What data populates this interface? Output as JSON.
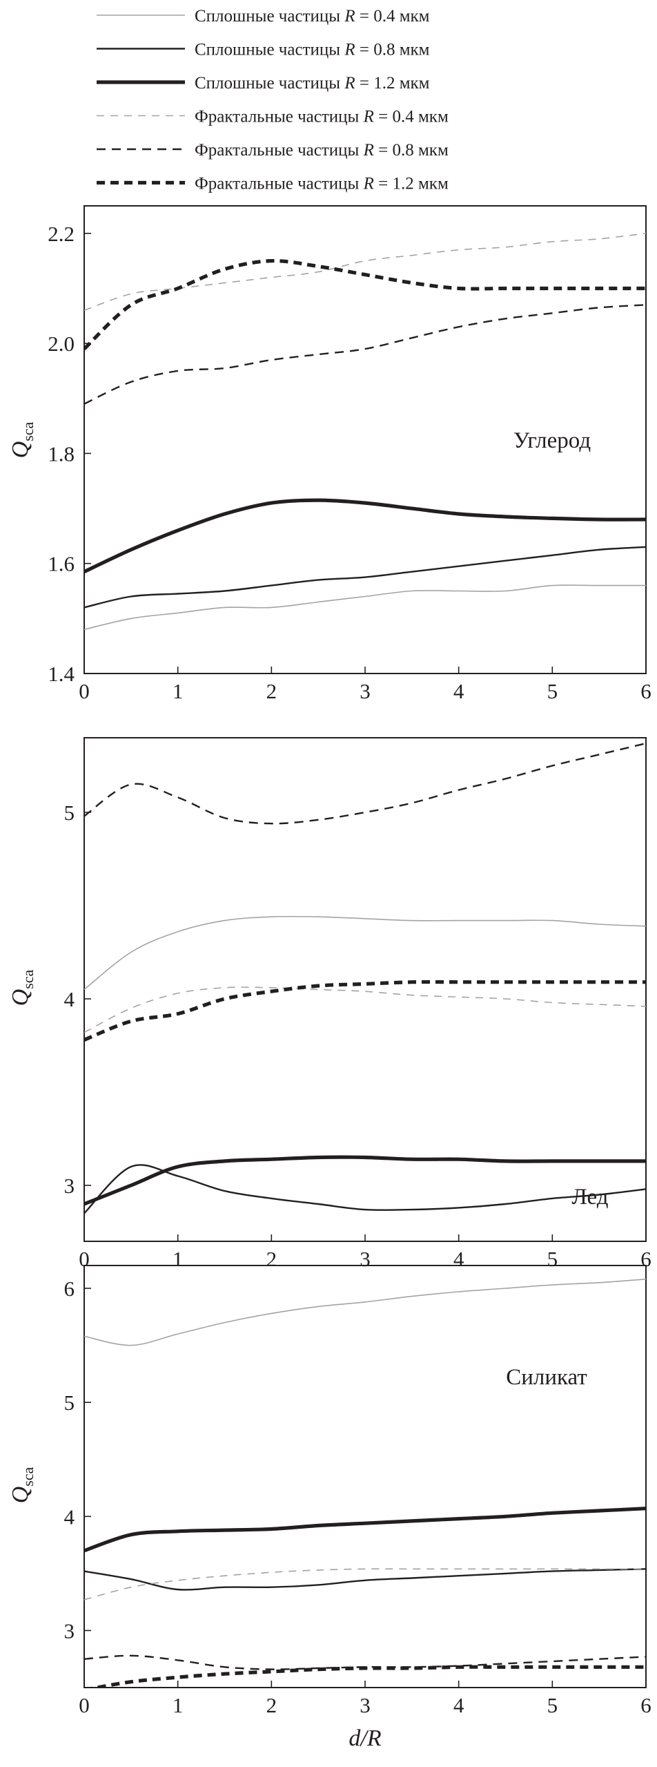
{
  "legend": [
    {
      "prefix": "Сплошные частицы",
      "var": "R",
      "eq": "= 0.4 мкм",
      "color": "#a3a3a3",
      "dash": "solid",
      "weight": "thin"
    },
    {
      "prefix": "Сплошные частицы",
      "var": "R",
      "eq": "= 0.8 мкм",
      "color": "#231f20",
      "dash": "solid",
      "weight": "medium"
    },
    {
      "prefix": "Сплошные частицы",
      "var": "R",
      "eq": "= 1.2 мкм",
      "color": "#231f20",
      "dash": "solid",
      "weight": "thick"
    },
    {
      "prefix": "Фрактальные частицы",
      "var": "R",
      "eq": "= 0.4 мкм",
      "color": "#a3a3a3",
      "dash": "dashed",
      "weight": "thin"
    },
    {
      "prefix": "Фрактальные частицы",
      "var": "R",
      "eq": "= 0.8 мкм",
      "color": "#231f20",
      "dash": "dashed",
      "weight": "medium"
    },
    {
      "prefix": "Фрактальные частицы",
      "var": "R",
      "eq": "= 1.2 мкм",
      "color": "#231f20",
      "dash": "dashed",
      "weight": "thick"
    }
  ],
  "x_label": {
    "main": "d/R"
  },
  "y_label": {
    "main": "Q",
    "sub": "sca"
  },
  "chart_data": [
    {
      "type": "line",
      "panel_label": "Углерод",
      "xlim": [
        0,
        6
      ],
      "ylim": [
        1.4,
        2.25
      ],
      "x_ticks": [
        0,
        1,
        2,
        3,
        4,
        5,
        6
      ],
      "y_ticks": [
        1.4,
        1.6,
        1.8,
        2.0,
        2.2
      ],
      "y_tick_labels": [
        "1.4",
        "1.6",
        "1.8",
        "2.0",
        "2.2"
      ],
      "x": [
        0,
        0.5,
        1,
        1.5,
        2,
        2.5,
        3,
        3.5,
        4,
        4.5,
        5,
        5.5,
        6
      ],
      "series": [
        {
          "values": [
            1.48,
            1.5,
            1.51,
            1.52,
            1.52,
            1.53,
            1.54,
            1.55,
            1.55,
            1.55,
            1.56,
            1.56,
            1.56
          ]
        },
        {
          "values": [
            1.52,
            1.54,
            1.545,
            1.55,
            1.56,
            1.57,
            1.575,
            1.585,
            1.595,
            1.605,
            1.615,
            1.625,
            1.63
          ]
        },
        {
          "values": [
            1.585,
            1.625,
            1.66,
            1.69,
            1.71,
            1.715,
            1.71,
            1.7,
            1.69,
            1.685,
            1.682,
            1.68,
            1.68
          ]
        },
        {
          "values": [
            2.06,
            2.09,
            2.1,
            2.11,
            2.12,
            2.13,
            2.15,
            2.16,
            2.17,
            2.175,
            2.185,
            2.19,
            2.2
          ]
        },
        {
          "values": [
            1.89,
            1.93,
            1.95,
            1.955,
            1.97,
            1.98,
            1.99,
            2.01,
            2.03,
            2.045,
            2.055,
            2.065,
            2.07
          ]
        },
        {
          "values": [
            1.99,
            2.07,
            2.1,
            2.135,
            2.15,
            2.14,
            2.125,
            2.11,
            2.1,
            2.1,
            2.1,
            2.1,
            2.1
          ]
        }
      ]
    },
    {
      "type": "line",
      "panel_label": "Лед",
      "xlim": [
        0,
        6
      ],
      "ylim": [
        2.7,
        5.4
      ],
      "x_ticks": [
        0,
        1,
        2,
        3,
        4,
        5,
        6
      ],
      "y_ticks": [
        3,
        4,
        5
      ],
      "y_tick_labels": [
        "3",
        "4",
        "5"
      ],
      "x": [
        0,
        0.5,
        1,
        1.5,
        2,
        2.5,
        3,
        3.5,
        4,
        4.5,
        5,
        5.5,
        6
      ],
      "series": [
        {
          "values": [
            4.05,
            4.25,
            4.36,
            4.42,
            4.44,
            4.44,
            4.43,
            4.42,
            4.42,
            4.42,
            4.42,
            4.4,
            4.39
          ]
        },
        {
          "values": [
            2.85,
            3.1,
            3.05,
            2.97,
            2.93,
            2.9,
            2.87,
            2.87,
            2.88,
            2.9,
            2.93,
            2.95,
            2.98
          ]
        },
        {
          "values": [
            2.9,
            3.0,
            3.1,
            3.13,
            3.14,
            3.15,
            3.15,
            3.14,
            3.14,
            3.13,
            3.13,
            3.13,
            3.13
          ]
        },
        {
          "values": [
            3.82,
            3.95,
            4.03,
            4.06,
            4.06,
            4.05,
            4.04,
            4.02,
            4.01,
            4.0,
            3.98,
            3.97,
            3.96
          ]
        },
        {
          "values": [
            4.98,
            5.15,
            5.08,
            4.97,
            4.94,
            4.96,
            5.0,
            5.05,
            5.12,
            5.18,
            5.25,
            5.31,
            5.37
          ]
        },
        {
          "values": [
            3.78,
            3.88,
            3.92,
            4.0,
            4.04,
            4.07,
            4.08,
            4.09,
            4.09,
            4.09,
            4.09,
            4.09,
            4.09
          ]
        }
      ]
    },
    {
      "type": "line",
      "panel_label": "Силикат",
      "xlim": [
        0,
        6
      ],
      "ylim": [
        2.5,
        6.2
      ],
      "x_ticks": [
        0,
        1,
        2,
        3,
        4,
        5,
        6
      ],
      "y_ticks": [
        3,
        4,
        5,
        6
      ],
      "y_tick_labels": [
        "3",
        "4",
        "5",
        "6"
      ],
      "x": [
        0,
        0.5,
        1,
        1.5,
        2,
        2.5,
        3,
        3.5,
        4,
        4.5,
        5,
        5.5,
        6
      ],
      "series": [
        {
          "values": [
            5.58,
            5.5,
            5.6,
            5.7,
            5.78,
            5.84,
            5.88,
            5.93,
            5.97,
            6.0,
            6.03,
            6.05,
            6.08
          ]
        },
        {
          "values": [
            3.52,
            3.45,
            3.36,
            3.38,
            3.38,
            3.4,
            3.44,
            3.46,
            3.48,
            3.5,
            3.52,
            3.53,
            3.54
          ]
        },
        {
          "values": [
            3.7,
            3.84,
            3.87,
            3.88,
            3.89,
            3.92,
            3.94,
            3.96,
            3.98,
            4.0,
            4.03,
            4.05,
            4.07
          ]
        },
        {
          "values": [
            3.27,
            3.38,
            3.44,
            3.48,
            3.51,
            3.53,
            3.54,
            3.54,
            3.54,
            3.54,
            3.54,
            3.54,
            3.54
          ]
        },
        {
          "values": [
            2.75,
            2.78,
            2.74,
            2.68,
            2.66,
            2.67,
            2.68,
            2.68,
            2.69,
            2.71,
            2.73,
            2.75,
            2.77
          ]
        },
        {
          "values": [
            2.48,
            2.55,
            2.59,
            2.62,
            2.64,
            2.66,
            2.67,
            2.67,
            2.68,
            2.68,
            2.68,
            2.68,
            2.68
          ]
        }
      ]
    }
  ]
}
